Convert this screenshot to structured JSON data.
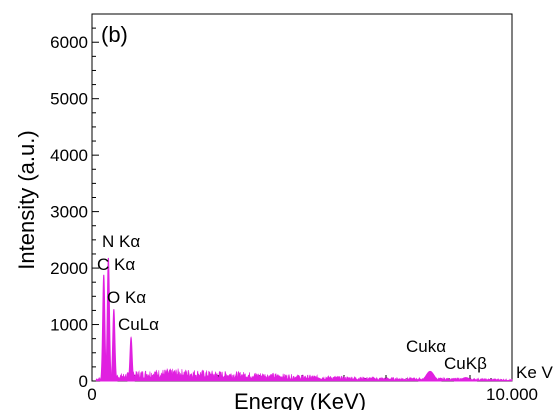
{
  "chart_data": {
    "type": "area",
    "panel_label": "(b)",
    "title": "",
    "xlabel": "Energy (KeV)",
    "ylabel": "Intensity (a.u.)",
    "x_unit": "Ke V",
    "xlim": [
      0,
      10
    ],
    "ylim": [
      0,
      6500
    ],
    "x_ticks": [
      {
        "value": 0,
        "label": "0"
      },
      {
        "value": 10,
        "label": "10.000"
      }
    ],
    "y_ticks": [
      {
        "value": 0,
        "label": "0"
      },
      {
        "value": 1000,
        "label": "1000"
      },
      {
        "value": 2000,
        "label": "2000"
      },
      {
        "value": 3000,
        "label": "3000"
      },
      {
        "value": 4000,
        "label": "4000"
      },
      {
        "value": 5000,
        "label": "5000"
      },
      {
        "value": 6000,
        "label": "6000"
      }
    ],
    "color": "#e020e0",
    "peaks": [
      {
        "x": 0.28,
        "y": 1880,
        "label": "C Kα"
      },
      {
        "x": 0.39,
        "y": 2180,
        "label": "N Kα"
      },
      {
        "x": 0.52,
        "y": 1270,
        "label": "O Kα"
      },
      {
        "x": 0.93,
        "y": 770,
        "label": "CuLα"
      },
      {
        "x": 8.05,
        "y": 170,
        "label": "Cukα"
      },
      {
        "x": 8.9,
        "y": 60,
        "label": "CuKβ"
      }
    ],
    "background": {
      "x": [
        0.1,
        0.6,
        1.2,
        2.0,
        3.0,
        4.0,
        5.0,
        6.0,
        7.0,
        8.5,
        9.5,
        10.0
      ],
      "y": [
        40,
        90,
        140,
        160,
        130,
        110,
        80,
        60,
        45,
        40,
        30,
        25
      ]
    }
  }
}
